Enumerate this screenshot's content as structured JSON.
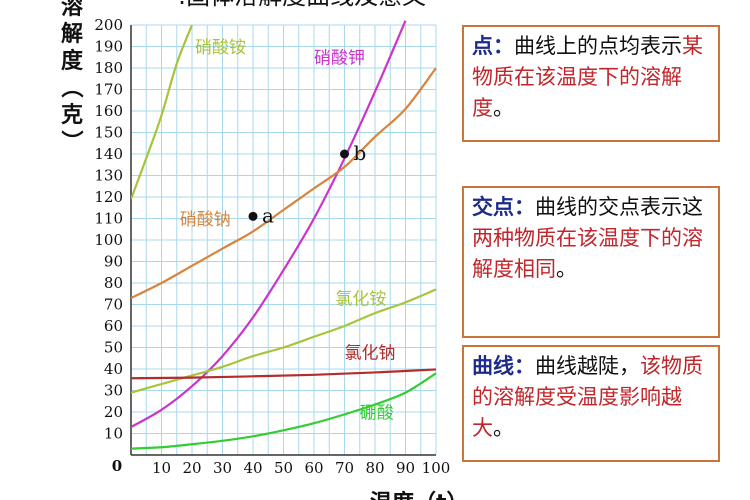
{
  "page": {
    "title_partial": ":固体溶解度曲线及意义",
    "y_axis_title_chars": [
      "溶",
      "解",
      "度",
      "（",
      "克",
      "）"
    ],
    "x_axis_title": "温度（t）"
  },
  "chart_data": {
    "type": "line",
    "xlabel": "温度（t）",
    "ylabel": "溶解度（克）",
    "xlim": [
      0,
      100
    ],
    "ylim": [
      0,
      200
    ],
    "x_ticks": [
      "0",
      "10",
      "20",
      "30",
      "40",
      "50",
      "60",
      "70",
      "80",
      "90",
      "100"
    ],
    "y_ticks": [
      "10",
      "20",
      "30",
      "40",
      "50",
      "60",
      "70",
      "80",
      "90",
      "100",
      "110",
      "120",
      "130",
      "140",
      "150",
      "160",
      "170",
      "180",
      "190",
      "200"
    ],
    "grid": true,
    "series": [
      {
        "name": "硝酸铵",
        "color": "#a8c43a",
        "x": [
          0,
          5,
          10,
          15,
          20
        ],
        "y": [
          119,
          138,
          158,
          182,
          200
        ]
      },
      {
        "name": "硝酸钾",
        "color": "#cc33cc",
        "x": [
          0,
          10,
          20,
          30,
          40,
          50,
          60,
          70,
          80,
          90
        ],
        "y": [
          13,
          21,
          32,
          46,
          64,
          86,
          110,
          138,
          169,
          202
        ]
      },
      {
        "name": "硝酸钠",
        "color": "#d9843b",
        "x": [
          0,
          10,
          20,
          30,
          40,
          50,
          60,
          70,
          80,
          90,
          100
        ],
        "y": [
          73,
          80,
          88,
          96,
          104,
          114,
          124,
          134,
          148,
          161,
          180
        ]
      },
      {
        "name": "氯化铵",
        "color": "#a8c43a",
        "x": [
          0,
          10,
          20,
          30,
          40,
          50,
          60,
          70,
          80,
          90,
          100
        ],
        "y": [
          29,
          33,
          37,
          41,
          46,
          50,
          55,
          60,
          66,
          71,
          77
        ]
      },
      {
        "name": "氯化钠",
        "color": "#b32d2d",
        "x": [
          0,
          20,
          40,
          60,
          80,
          100
        ],
        "y": [
          35.7,
          36,
          36.6,
          37.3,
          38.4,
          39.8
        ]
      },
      {
        "name": "硼酸",
        "color": "#33cc33",
        "x": [
          0,
          10,
          20,
          30,
          40,
          50,
          60,
          70,
          80,
          90,
          100
        ],
        "y": [
          3,
          3.6,
          5,
          6.6,
          8.7,
          11.5,
          14.8,
          18.9,
          23.5,
          29,
          38
        ]
      }
    ],
    "series_label_pos": [
      {
        "x": 21,
        "y": 187
      },
      {
        "x": 60,
        "y": 182
      },
      {
        "x": 16,
        "y": 107
      },
      {
        "x": 67,
        "y": 70
      },
      {
        "x": 70,
        "y": 45
      },
      {
        "x": 75,
        "y": 17
      }
    ],
    "points": [
      {
        "label": "a",
        "x": 40,
        "y": 111
      },
      {
        "label": "b",
        "x": 70,
        "y": 140
      }
    ]
  },
  "notes": [
    {
      "keyword": "点",
      "colon": "：",
      "text1": "曲线上的点均表示",
      "highlight": "某物质在该温度下的溶解度",
      "text2": "。"
    },
    {
      "keyword": "交点",
      "colon": "：",
      "text1": "曲线的交点表示这",
      "highlight": "两种物质在该温度下的溶解度相同",
      "text2": "。"
    },
    {
      "keyword": "曲线",
      "colon": "：",
      "text1": "曲线越陡，",
      "highlight": "该物质的溶解度受温度影响越大",
      "text2": "。"
    }
  ]
}
